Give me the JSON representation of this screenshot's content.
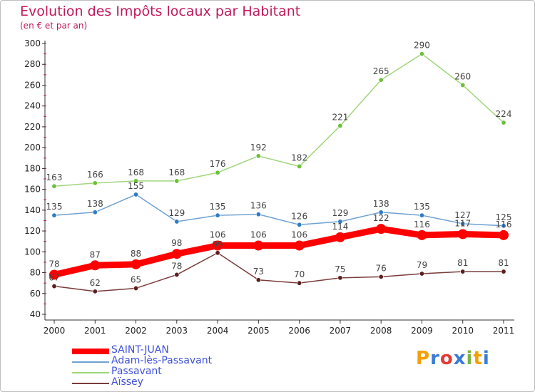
{
  "header": {
    "title": "Evolution des Impôts locaux par Habitant",
    "subtitle": "(en € et par an)"
  },
  "logo": {
    "text": "Proxiti"
  },
  "chart_data": {
    "type": "line",
    "title": "Evolution des Impôts locaux par Habitant",
    "subtitle": "(en € et par an)",
    "xlabel": "",
    "ylabel": "",
    "x": [
      "2000",
      "2001",
      "2002",
      "2003",
      "2004",
      "2005",
      "2006",
      "2007",
      "2008",
      "2009",
      "2010",
      "2011"
    ],
    "ylim": [
      40,
      300
    ],
    "yticks": [
      40,
      60,
      80,
      100,
      120,
      140,
      160,
      180,
      200,
      220,
      240,
      260,
      280,
      300
    ],
    "grid": false,
    "legend_position": "bottom-left",
    "series": [
      {
        "name": "SAINT-JUAN",
        "color": "#ff0000",
        "marker_color": "#ff0000",
        "values": [
          78,
          87,
          88,
          98,
          106,
          106,
          106,
          114,
          122,
          116,
          117,
          116
        ],
        "labels": [
          "78",
          "87",
          "88",
          "98",
          "106",
          "106",
          "106",
          "114",
          "122",
          "116",
          "117",
          "116"
        ]
      },
      {
        "name": "Adam-lès-Passavant",
        "color": "#6fa1d2",
        "marker_color": "#2f7cc4",
        "values": [
          135,
          138,
          155,
          129,
          135,
          136,
          126,
          129,
          138,
          135,
          127,
          125
        ],
        "labels": [
          "135",
          "138",
          "155",
          "129",
          "135",
          "136",
          "126",
          "129",
          "138",
          "135",
          "127",
          "125"
        ]
      },
      {
        "name": "Passavant",
        "color": "#9fd67a",
        "marker_color": "#6cc03a",
        "values": [
          163,
          166,
          168,
          168,
          176,
          192,
          182,
          221,
          265,
          290,
          260,
          224
        ],
        "labels": [
          "163",
          "166",
          "168",
          "168",
          "176",
          "192",
          "182",
          "221",
          "265",
          "290",
          "260",
          "224"
        ]
      },
      {
        "name": "Aïssey",
        "color": "#7b3b3b",
        "marker_color": "#5a1e1e",
        "values": [
          67,
          62,
          65,
          78,
          99,
          73,
          70,
          75,
          76,
          79,
          81,
          81
        ],
        "labels": [
          "67",
          "62",
          "65",
          "78",
          "99",
          "73",
          "70",
          "75",
          "76",
          "79",
          "81",
          "81"
        ]
      }
    ]
  }
}
